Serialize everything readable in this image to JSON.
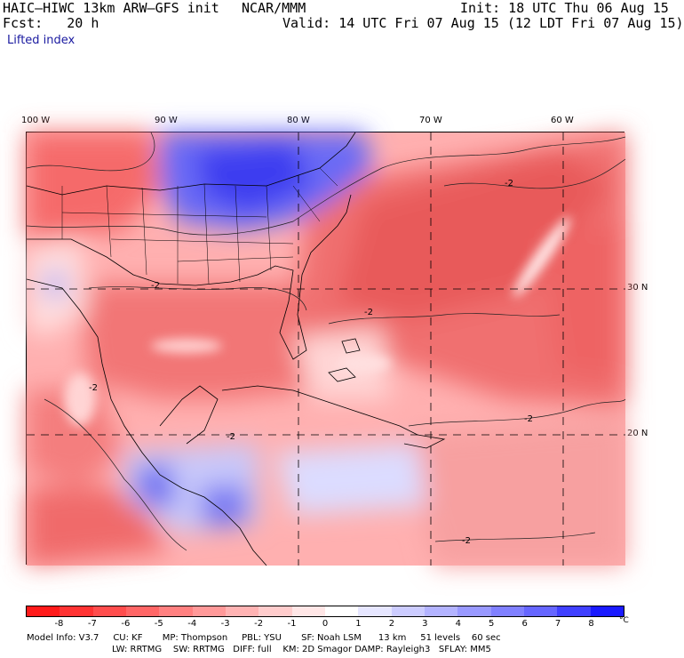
{
  "header": {
    "model": "HAIC–HIWC 13km ARW–GFS init",
    "center": "NCAR/MMM",
    "init": "Init: 18 UTC Thu 06 Aug 15",
    "fcst": "Fcst:   20 h",
    "valid": "Valid: 14 UTC Fri 07 Aug 15 (12 LDT Fri 07 Aug 15)",
    "field": "Lifted index"
  },
  "map": {
    "lon_labels": [
      "100 W",
      "90 W",
      "80 W",
      "70 W",
      "60 W"
    ],
    "lat_labels": [
      "30 N",
      "20 N"
    ],
    "contour_labels": [
      "-2",
      "-2",
      "-2",
      "-2",
      "-2",
      "-2",
      "-2"
    ]
  },
  "colorbar": {
    "ticks": [
      "-8",
      "-7",
      "-6",
      "-5",
      "-4",
      "-3",
      "-2",
      "-1",
      "0",
      "1",
      "2",
      "3",
      "4",
      "5",
      "6",
      "7",
      "8"
    ],
    "unit": "°C",
    "colors": [
      "#ff1a1a",
      "#ff3333",
      "#ff4d4d",
      "#ff6666",
      "#ff8080",
      "#ff9999",
      "#ffb3b3",
      "#ffcccc",
      "#ffe6e6",
      "#ffffff",
      "#e6e6ff",
      "#ccccff",
      "#b3b3ff",
      "#9999ff",
      "#8080ff",
      "#6666ff",
      "#4040ff",
      "#1a1aff"
    ]
  },
  "footer": {
    "line1": "Model Info: V3.7     CU: KF       MP: Thompson     PBL: YSU       SF: Noah LSM      13 km     51 levels    60 sec",
    "line2": "LW: RRTMG    SW: RRTMG   DIFF: full    KM: 2D Smagor DAMP: Rayleigh3   SFLAY: MM5"
  }
}
